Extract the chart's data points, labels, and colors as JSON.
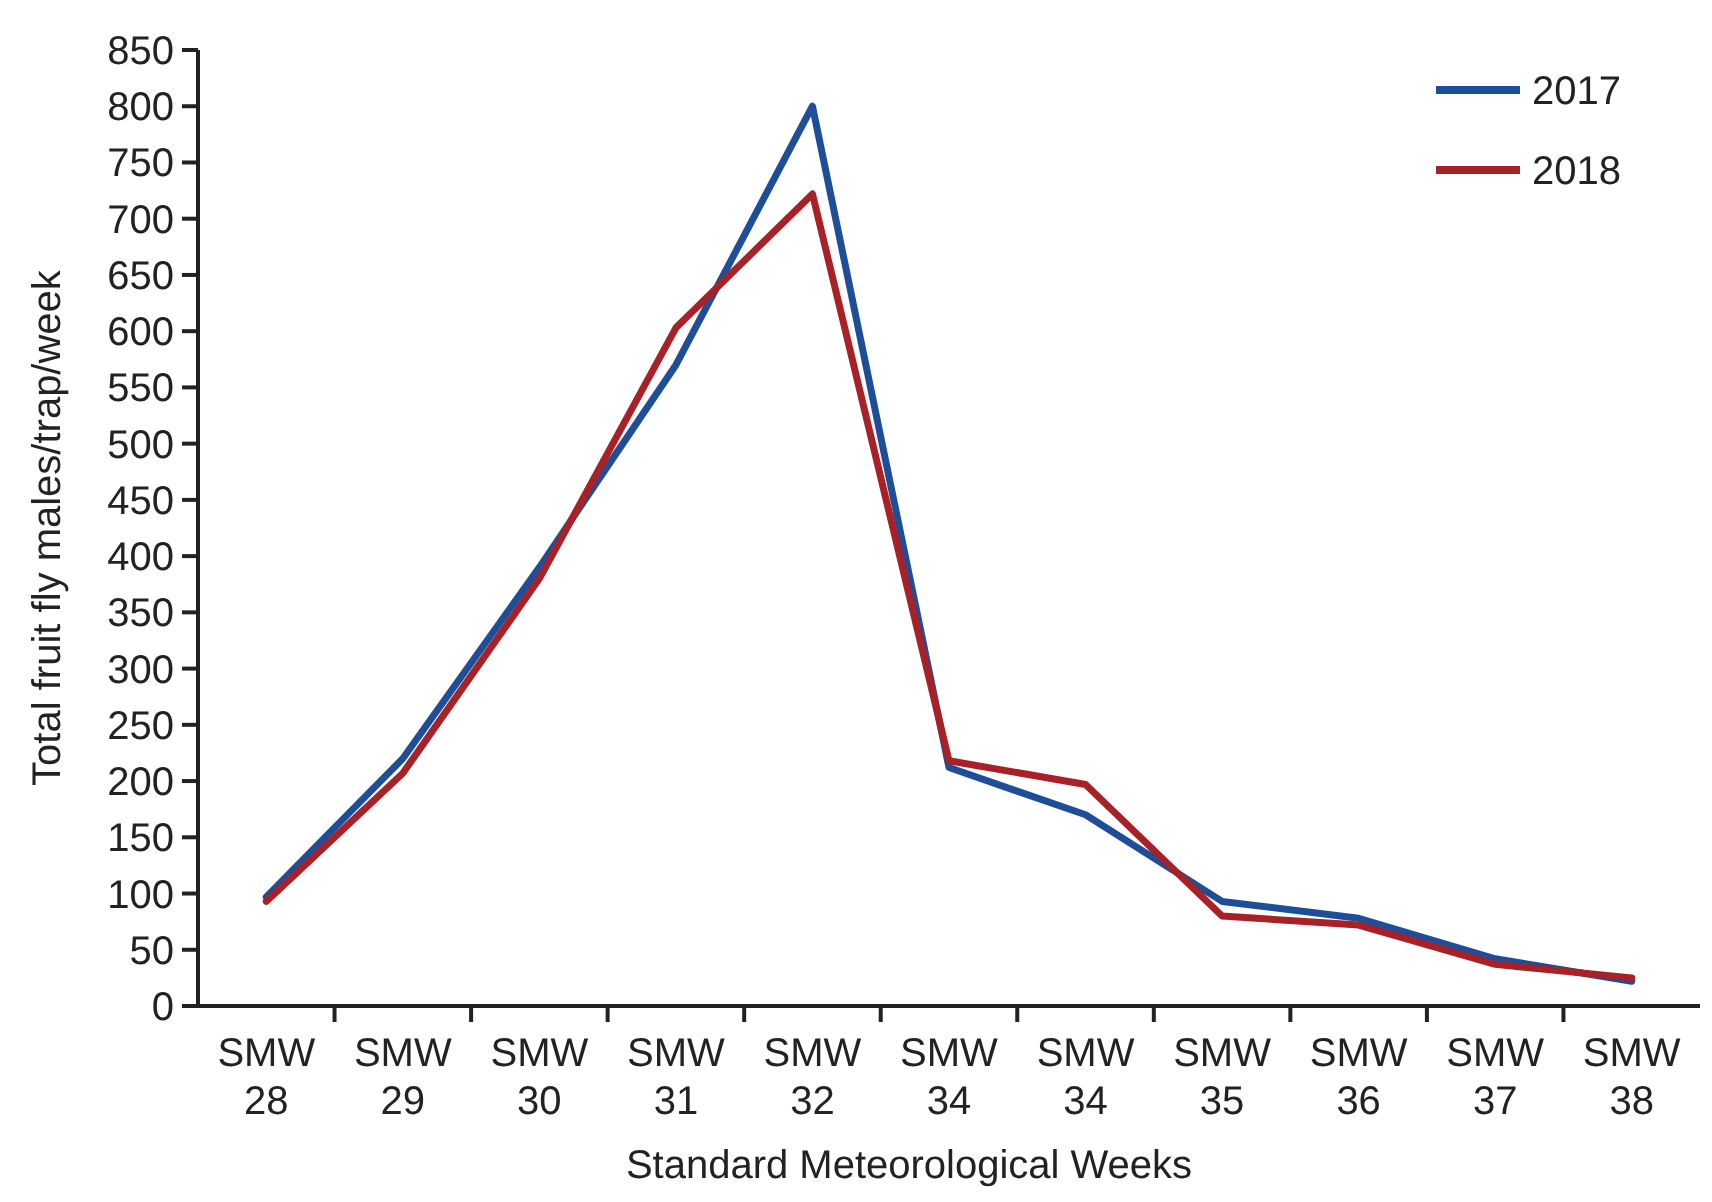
{
  "chart_data": {
    "type": "line",
    "xlabel": "Standard Meteorological Weeks",
    "ylabel": "Total fruit fly males/trap/week",
    "categories": [
      "SMW 28",
      "SMW 29",
      "SMW 30",
      "SMW 31",
      "SMW 32",
      "SMW 34",
      "SMW 34",
      "SMW 35",
      "SMW 36",
      "SMW 37",
      "SMW 38"
    ],
    "series": [
      {
        "name": "2017",
        "color": "#1f4e99",
        "values": [
          97,
          220,
          390,
          570,
          800,
          212,
          170,
          93,
          78,
          42,
          22
        ]
      },
      {
        "name": "2018",
        "color": "#a82127",
        "values": [
          93,
          207,
          380,
          603,
          722,
          218,
          197,
          80,
          72,
          37,
          25
        ]
      }
    ],
    "ylim": [
      0,
      850
    ],
    "yticks": [
      0,
      50,
      100,
      150,
      200,
      250,
      300,
      350,
      400,
      450,
      500,
      550,
      600,
      650,
      700,
      750,
      800,
      850
    ],
    "grid": false,
    "legend": "top right",
    "marker": "none",
    "line_style": "solid"
  }
}
